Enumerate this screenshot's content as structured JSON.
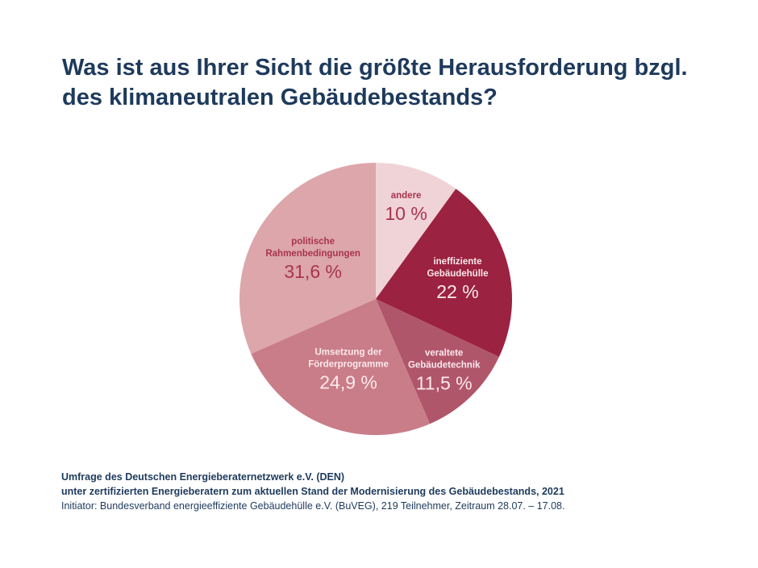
{
  "chart_data": {
    "type": "pie",
    "title": "Was ist aus Ihrer Sicht die größte Herausforderung bzgl. des klimaneutralen Gebäudebestands?",
    "start": "12 o'clock, clockwise",
    "slices": [
      {
        "label_lines": [
          "andere"
        ],
        "value": 10,
        "value_label": "10 %",
        "color": "#f0d3d7",
        "text_color": "#a8344e"
      },
      {
        "label_lines": [
          "ineffiziente",
          "Gebäudehülle"
        ],
        "value": 22,
        "value_label": "22 %",
        "color": "#9b2240",
        "text_color": "#fbe9ec"
      },
      {
        "label_lines": [
          "veraltete",
          "Gebäudetechnik"
        ],
        "value": 11.5,
        "value_label": "11,5 %",
        "color": "#b0566a",
        "text_color": "#fbe9ec"
      },
      {
        "label_lines": [
          "Umsetzung der",
          "Förderprogramme"
        ],
        "value": 24.9,
        "value_label": "24,9 %",
        "color": "#c97d88",
        "text_color": "#fbe9ec"
      },
      {
        "label_lines": [
          "politische",
          "Rahmenbedingungen"
        ],
        "value": 31.6,
        "value_label": "31,6 %",
        "color": "#dca6ab",
        "text_color": "#a8344e"
      }
    ]
  },
  "footer": {
    "line1": "Umfrage des Deutschen Energieberaternetzwerk e.V. (DEN)",
    "line2": "unter zertifizierten Energieberatern zum aktuellen Stand der Modernisierung des Gebäudebestands, 2021",
    "line3": "Initiator: Bundesverband energieeffiziente Gebäudehülle e.V. (BuVEG), 219 Teilnehmer, Zeitraum 28.07. – 17.08."
  }
}
